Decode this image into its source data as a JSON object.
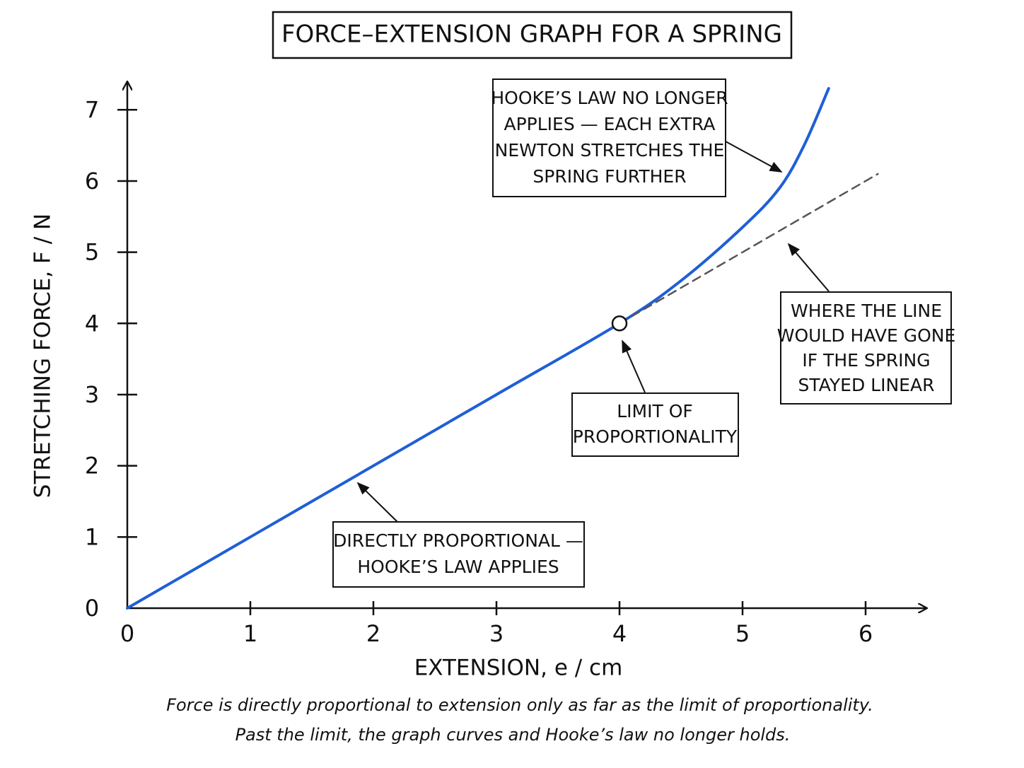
{
  "chart_data": {
    "type": "line",
    "title": "FORCE–EXTENSION GRAPH FOR A SPRING",
    "x_label": "EXTENSION, e / cm",
    "y_label": "STRETCHING FORCE, F / N",
    "xlim": [
      0,
      6.5
    ],
    "ylim": [
      0,
      7.4
    ],
    "xticks": [
      0,
      1,
      2,
      3,
      4,
      5,
      6
    ],
    "yticks": [
      0,
      1,
      2,
      3,
      4,
      5,
      6,
      7
    ],
    "series": [
      {
        "color": "#1f5fd6",
        "style": "solid",
        "x": [
          0,
          1,
          2,
          3,
          4,
          4.5,
          5,
          5.3,
          5.5,
          5.7
        ],
        "values": [
          0,
          1,
          2,
          3,
          4,
          4.6,
          5.35,
          5.9,
          6.5,
          7.3
        ]
      },
      {
        "color": "#555555",
        "style": "dashed",
        "x": [
          4,
          6.1
        ],
        "values": [
          4,
          6.1
        ]
      }
    ],
    "annotations": [
      {
        "lines": [
          "HOOKE’S LAW NO LONGER",
          "APPLIES — EACH EXTRA",
          "NEWTON STRETCHES THE",
          "SPRING FURTHER"
        ]
      },
      {
        "lines": [
          "WHERE THE LINE",
          "WOULD HAVE GONE",
          "IF THE SPRING",
          "STAYED LINEAR"
        ]
      },
      {
        "lines": [
          "LIMIT OF",
          "PROPORTIONALITY"
        ]
      },
      {
        "lines": [
          "DIRECTLY PROPORTIONAL —",
          "HOOKE’S LAW APPLIES"
        ]
      }
    ],
    "caption": [
      "Force is directly proportional to extension only as far as the limit of proportionality.",
      "Past the limit, the graph curves and Hooke’s law no longer holds."
    ]
  }
}
